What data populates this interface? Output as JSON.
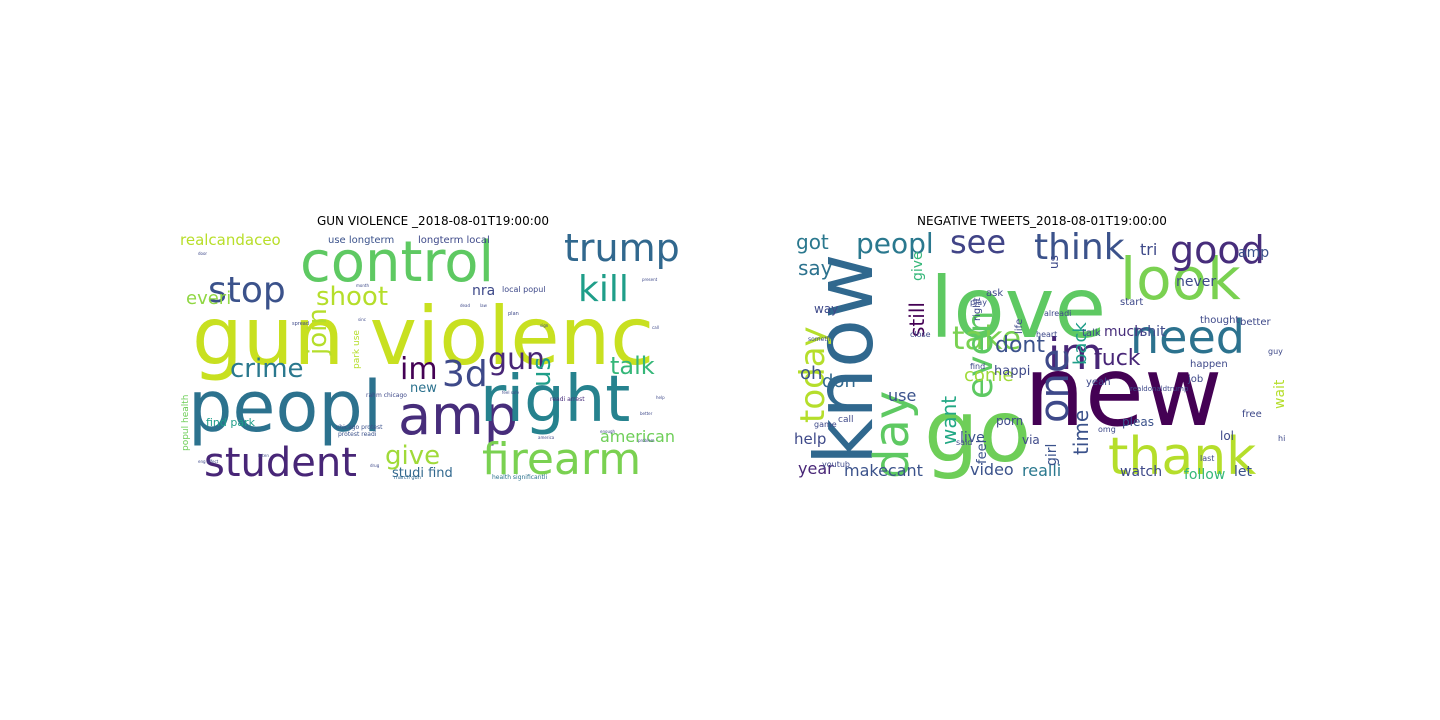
{
  "panels": [
    {
      "title": "GUN VIOLENCE _2018-08-01T19:00:00",
      "words": [
        {
          "text": "gun violenc",
          "color": "#c8e020"
        },
        {
          "text": "peopl",
          "color": "#2c728e"
        },
        {
          "text": "control",
          "color": "#5ec962"
        },
        {
          "text": "amp",
          "color": "#472d7b"
        },
        {
          "text": "right",
          "color": "#26828e"
        },
        {
          "text": "student",
          "color": "#482677"
        },
        {
          "text": "firearm",
          "color": "#7ad151"
        },
        {
          "text": "trump",
          "color": "#31688e"
        },
        {
          "text": "stop",
          "color": "#3b528b"
        },
        {
          "text": "kill",
          "color": "#1f9e89"
        },
        {
          "text": "shoot",
          "color": "#b5de2b"
        },
        {
          "text": "join",
          "color": "#b5de2b"
        },
        {
          "text": "crime",
          "color": "#2a788e"
        },
        {
          "text": "talk",
          "color": "#35b779"
        },
        {
          "text": "im",
          "color": "#440154"
        },
        {
          "text": "3d",
          "color": "#3e4989"
        },
        {
          "text": "gun",
          "color": "#482677"
        },
        {
          "text": "us",
          "color": "#1f9e89"
        },
        {
          "text": "give",
          "color": "#a0da39"
        },
        {
          "text": "american",
          "color": "#6ece58"
        },
        {
          "text": "everi",
          "color": "#90d743"
        },
        {
          "text": "realcandaceo",
          "color": "#b8de29"
        },
        {
          "text": "nra",
          "color": "#3e4989"
        },
        {
          "text": "new",
          "color": "#2c728e"
        },
        {
          "text": "find park",
          "color": "#1f9e89"
        },
        {
          "text": "studi find",
          "color": "#31688e"
        },
        {
          "text": "use longterm",
          "color": "#3b528b"
        },
        {
          "text": "longterm local",
          "color": "#3e4989"
        },
        {
          "text": "local popul",
          "color": "#3e4989"
        },
        {
          "text": "park use",
          "color": "#b5de2b"
        },
        {
          "text": "popul health",
          "color": "#6ece58"
        },
        {
          "text": "chicago protest",
          "color": "#3b528b"
        },
        {
          "text": "protest readi",
          "color": "#3b528b"
        },
        {
          "text": "rahm chicago",
          "color": "#3e4989"
        },
        {
          "text": "readi arrest",
          "color": "#472d7b"
        },
        {
          "text": "health significantli",
          "color": "#2c728e"
        },
        {
          "text": "march gun",
          "color": "#31688e"
        },
        {
          "text": "spread",
          "color": "#3e4989"
        },
        {
          "text": "plan",
          "color": "#3e4989"
        },
        {
          "text": "better",
          "color": "#3e4989"
        },
        {
          "text": "problem",
          "color": "#3e4989"
        },
        {
          "text": "enough",
          "color": "#3e4989"
        },
        {
          "text": "help",
          "color": "#3e4989"
        },
        {
          "text": "present",
          "color": "#3e4989"
        },
        {
          "text": "call",
          "color": "#3e4989"
        },
        {
          "text": "drug",
          "color": "#3e4989"
        },
        {
          "text": "feel safe",
          "color": "#3e4989"
        },
        {
          "text": "america",
          "color": "#3e4989"
        },
        {
          "text": "sign",
          "color": "#3e4989"
        },
        {
          "text": "door",
          "color": "#3e4989"
        },
        {
          "text": "month",
          "color": "#3e4989"
        },
        {
          "text": "sinc",
          "color": "#3e4989"
        },
        {
          "text": "eng affect",
          "color": "#3e4989"
        },
        {
          "text": "dead",
          "color": "#3e4989"
        },
        {
          "text": "listen",
          "color": "#3e4989"
        },
        {
          "text": "law",
          "color": "#3e4989"
        }
      ]
    },
    {
      "title": "NEGATIVE TWEETS_2018-08-01T19:00:00",
      "words": [
        {
          "text": "new",
          "color": "#440154"
        },
        {
          "text": "love",
          "color": "#5ec962"
        },
        {
          "text": "go",
          "color": "#6ece58"
        },
        {
          "text": "know",
          "color": "#30688e"
        },
        {
          "text": "look",
          "color": "#7ad151"
        },
        {
          "text": "thank",
          "color": "#b5de2b"
        },
        {
          "text": "need",
          "color": "#2c728e"
        },
        {
          "text": "im",
          "color": "#482677"
        },
        {
          "text": "day",
          "color": "#5ec962"
        },
        {
          "text": "one",
          "color": "#3e4989"
        },
        {
          "text": "take",
          "color": "#7ad151"
        },
        {
          "text": "even",
          "color": "#5ec962"
        },
        {
          "text": "good",
          "color": "#472d7b"
        },
        {
          "text": "think",
          "color": "#3b528b"
        },
        {
          "text": "today",
          "color": "#b5de2b"
        },
        {
          "text": "see",
          "color": "#414487"
        },
        {
          "text": "peopl",
          "color": "#2a788e"
        },
        {
          "text": "fuck",
          "color": "#482677"
        },
        {
          "text": "dont",
          "color": "#3b528b"
        },
        {
          "text": "time",
          "color": "#3b528b"
        },
        {
          "text": "back",
          "color": "#1f9e89"
        },
        {
          "text": "want",
          "color": "#22a884"
        },
        {
          "text": "still",
          "color": "#440154"
        },
        {
          "text": "come",
          "color": "#a0da39"
        },
        {
          "text": "say",
          "color": "#2c728e"
        },
        {
          "text": "got",
          "color": "#2a788e"
        },
        {
          "text": "don",
          "color": "#31688e"
        },
        {
          "text": "oh",
          "color": "#3b528b"
        },
        {
          "text": "help",
          "color": "#3e4989"
        },
        {
          "text": "use",
          "color": "#3b528b"
        },
        {
          "text": "year",
          "color": "#482677"
        },
        {
          "text": "makecant",
          "color": "#3b528b"
        },
        {
          "text": "video",
          "color": "#3b528b"
        },
        {
          "text": "realli",
          "color": "#2a788e"
        },
        {
          "text": "watch",
          "color": "#3e4989"
        },
        {
          "text": "follow",
          "color": "#35b779"
        },
        {
          "text": "let",
          "color": "#3b528b"
        },
        {
          "text": "wait",
          "color": "#b5de2b"
        },
        {
          "text": "never",
          "color": "#3e4989"
        },
        {
          "text": "amp",
          "color": "#3b528b"
        },
        {
          "text": "tri",
          "color": "#3e4989"
        },
        {
          "text": "much",
          "color": "#472d7b"
        },
        {
          "text": "shit",
          "color": "#3e4989"
        },
        {
          "text": "girl",
          "color": "#3b528b"
        },
        {
          "text": "pleas",
          "color": "#3b528b"
        },
        {
          "text": "feel",
          "color": "#3b528b"
        },
        {
          "text": "give",
          "color": "#35b779"
        },
        {
          "text": "us",
          "color": "#3e4989"
        },
        {
          "text": "happi",
          "color": "#3e4989"
        },
        {
          "text": "porn",
          "color": "#3e4989"
        },
        {
          "text": "live",
          "color": "#3b528b"
        },
        {
          "text": "via",
          "color": "#3e4989"
        },
        {
          "text": "lol",
          "color": "#3e4989"
        },
        {
          "text": "free",
          "color": "#3e4989"
        },
        {
          "text": "yeah",
          "color": "#3e4989"
        },
        {
          "text": "job",
          "color": "#3e4989"
        },
        {
          "text": "happen",
          "color": "#3e4989"
        },
        {
          "text": "thought",
          "color": "#3e4989"
        },
        {
          "text": "better",
          "color": "#3e4989"
        },
        {
          "text": "way",
          "color": "#3e4989"
        },
        {
          "text": "right",
          "color": "#3e4989"
        },
        {
          "text": "ask",
          "color": "#3e4989"
        },
        {
          "text": "life",
          "color": "#3e4989"
        },
        {
          "text": "start",
          "color": "#3e4989"
        },
        {
          "text": "talk",
          "color": "#3e4989"
        },
        {
          "text": "call",
          "color": "#3e4989"
        },
        {
          "text": "last",
          "color": "#3e4989"
        },
        {
          "text": "game",
          "color": "#3e4989"
        },
        {
          "text": "find",
          "color": "#3e4989"
        },
        {
          "text": "guy",
          "color": "#3e4989"
        },
        {
          "text": "hi",
          "color": "#3e4989"
        },
        {
          "text": "youtub",
          "color": "#3e4989"
        },
        {
          "text": "alreadi",
          "color": "#3e4989"
        },
        {
          "text": "play",
          "color": "#3e4989"
        },
        {
          "text": "heart",
          "color": "#3e4989"
        },
        {
          "text": "omg",
          "color": "#3e4989"
        },
        {
          "text": "said",
          "color": "#3e4989"
        },
        {
          "text": "close",
          "color": "#3e4989"
        },
        {
          "text": "realdonaldtrump",
          "color": "#3e4989"
        },
        {
          "text": "someth",
          "color": "#3e4989"
        }
      ]
    }
  ]
}
